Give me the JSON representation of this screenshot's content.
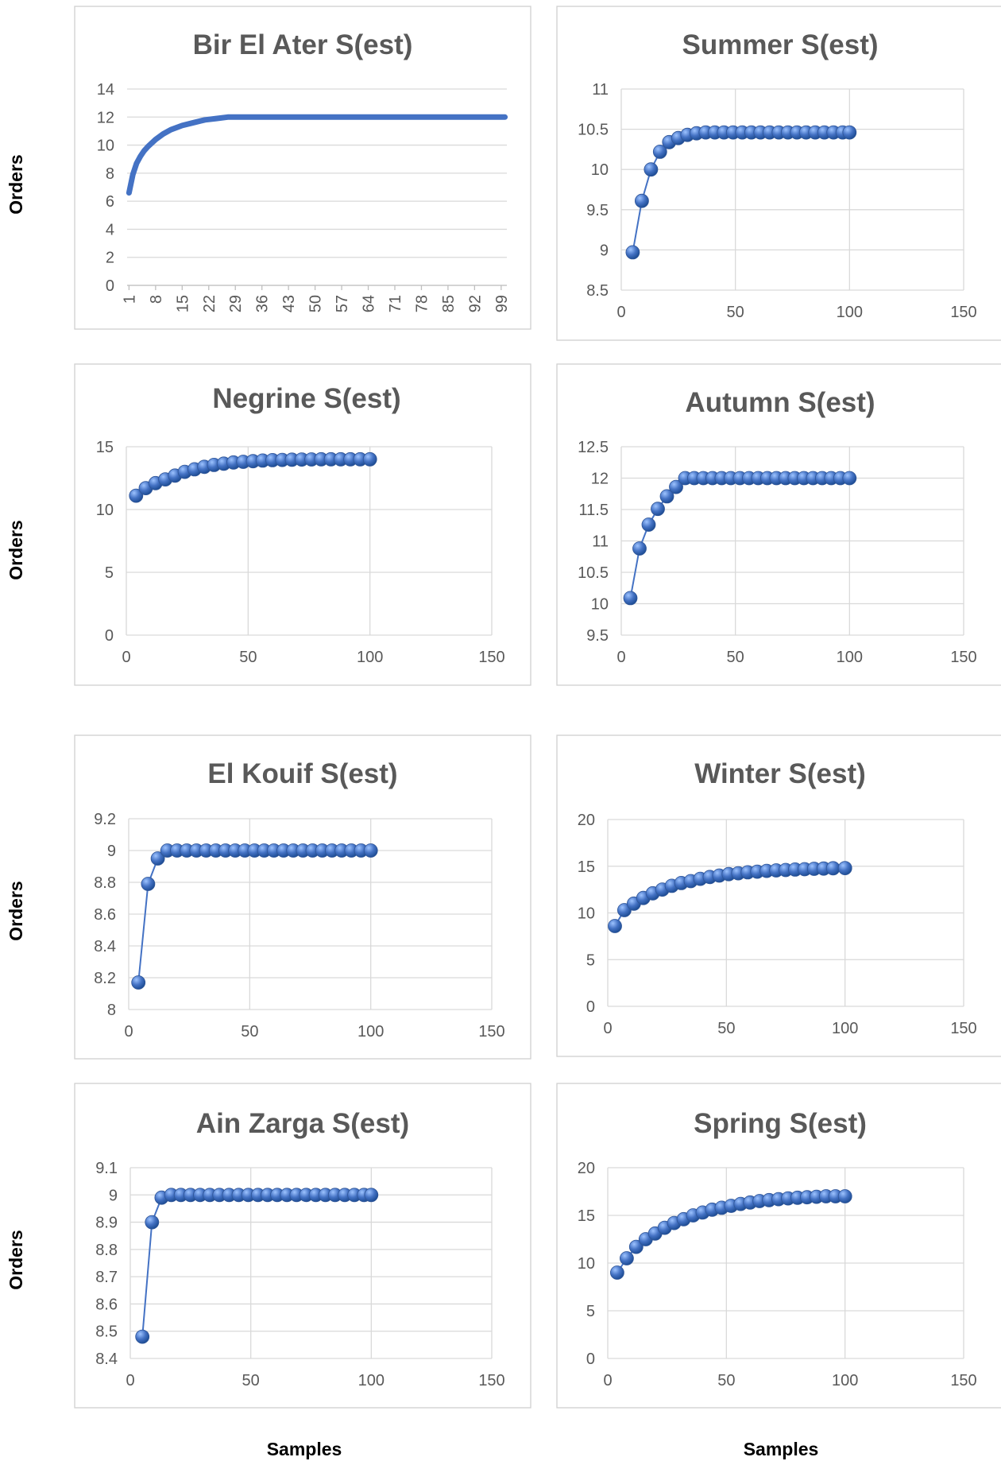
{
  "figure": {
    "ylabel": "Orders",
    "xlabel": "Samples"
  },
  "colors": {
    "series": "#4472c4",
    "marker_light": "#9dc3ff",
    "marker_dark": "#1f4e96",
    "grid": "#d9d9d9",
    "text": "#595959"
  },
  "chart_data": [
    {
      "type": "line",
      "title": "Bir El Ater S(est)",
      "xlabel": "",
      "ylabel": "",
      "x_axis": "category",
      "tick_labels": [
        "1",
        "8",
        "15",
        "22",
        "29",
        "36",
        "43",
        "50",
        "57",
        "64",
        "71",
        "78",
        "85",
        "92",
        "99"
      ],
      "ylim": [
        0,
        14
      ],
      "yticks": [
        0,
        2,
        4,
        6,
        8,
        10,
        12,
        14
      ],
      "grid": true,
      "markers": false,
      "x": [
        1,
        2,
        3,
        4,
        5,
        6,
        8,
        10,
        12,
        15,
        18,
        21,
        24,
        27,
        100
      ],
      "y": [
        6.6,
        7.9,
        8.7,
        9.2,
        9.6,
        9.9,
        10.4,
        10.8,
        11.1,
        11.4,
        11.6,
        11.8,
        11.9,
        12.0,
        12.0
      ]
    },
    {
      "type": "scatter",
      "title": "Summer S(est)",
      "xlabel": "",
      "ylabel": "",
      "xlim": [
        0,
        150
      ],
      "xticks": [
        0,
        50,
        100,
        150
      ],
      "ylim": [
        8.5,
        11
      ],
      "yticks": [
        8.5,
        9,
        9.5,
        10,
        10.5,
        11
      ],
      "grid": true,
      "markers": true,
      "x": [
        5,
        9,
        13,
        17,
        21,
        25,
        29,
        33,
        37,
        41,
        45,
        49,
        53,
        57,
        61,
        65,
        69,
        73,
        77,
        81,
        85,
        89,
        93,
        97,
        100
      ],
      "y": [
        8.97,
        9.61,
        10.0,
        10.22,
        10.34,
        10.39,
        10.43,
        10.45,
        10.46,
        10.46,
        10.46,
        10.46,
        10.46,
        10.46,
        10.46,
        10.46,
        10.46,
        10.46,
        10.46,
        10.46,
        10.46,
        10.46,
        10.46,
        10.46,
        10.46
      ]
    },
    {
      "type": "scatter",
      "title": "Negrine S(est)",
      "xlabel": "",
      "ylabel": "",
      "xlim": [
        0,
        150
      ],
      "xticks": [
        0,
        50,
        100,
        150
      ],
      "ylim": [
        0,
        15
      ],
      "yticks": [
        0,
        5,
        10,
        15
      ],
      "grid": true,
      "markers": true,
      "x": [
        4,
        8,
        12,
        16,
        20,
        24,
        28,
        32,
        36,
        40,
        44,
        48,
        52,
        56,
        60,
        64,
        68,
        72,
        76,
        80,
        84,
        88,
        92,
        96,
        100
      ],
      "y": [
        11.1,
        11.7,
        12.1,
        12.4,
        12.7,
        13.0,
        13.2,
        13.4,
        13.55,
        13.65,
        13.75,
        13.8,
        13.85,
        13.9,
        13.93,
        13.95,
        13.97,
        13.98,
        13.99,
        14.0,
        14.0,
        14.0,
        14.0,
        14.0,
        14.0
      ]
    },
    {
      "type": "scatter",
      "title": "Autumn S(est)",
      "xlabel": "",
      "ylabel": "",
      "xlim": [
        0,
        150
      ],
      "xticks": [
        0,
        50,
        100,
        150
      ],
      "ylim": [
        9.5,
        12.5
      ],
      "yticks": [
        9.5,
        10,
        10.5,
        11,
        11.5,
        12,
        12.5
      ],
      "grid": true,
      "markers": true,
      "x": [
        4,
        8,
        12,
        16,
        20,
        24,
        28,
        32,
        36,
        40,
        44,
        48,
        52,
        56,
        60,
        64,
        68,
        72,
        76,
        80,
        84,
        88,
        92,
        96,
        100
      ],
      "y": [
        10.09,
        10.88,
        11.26,
        11.51,
        11.71,
        11.86,
        12.0,
        12.0,
        12.0,
        12.0,
        12.0,
        12.0,
        12.0,
        12.0,
        12.0,
        12.0,
        12.0,
        12.0,
        12.0,
        12.0,
        12.0,
        12.0,
        12.0,
        12.0,
        12.0
      ]
    },
    {
      "type": "scatter",
      "title": "El Kouif S(est)",
      "xlabel": "",
      "ylabel": "",
      "xlim": [
        0,
        150
      ],
      "xticks": [
        0,
        50,
        100,
        150
      ],
      "ylim": [
        8,
        9.2
      ],
      "yticks": [
        8,
        8.2,
        8.4,
        8.6,
        8.8,
        9,
        9.2
      ],
      "grid": true,
      "markers": true,
      "x": [
        4,
        8,
        12,
        16,
        20,
        24,
        28,
        32,
        36,
        40,
        44,
        48,
        52,
        56,
        60,
        64,
        68,
        72,
        76,
        80,
        84,
        88,
        92,
        96,
        100
      ],
      "y": [
        8.17,
        8.79,
        8.95,
        9.0,
        9.0,
        9.0,
        9.0,
        9.0,
        9.0,
        9.0,
        9.0,
        9.0,
        9.0,
        9.0,
        9.0,
        9.0,
        9.0,
        9.0,
        9.0,
        9.0,
        9.0,
        9.0,
        9.0,
        9.0,
        9.0
      ]
    },
    {
      "type": "scatter",
      "title": "Winter S(est)",
      "xlabel": "",
      "ylabel": "",
      "xlim": [
        0,
        150
      ],
      "xticks": [
        0,
        50,
        100,
        150
      ],
      "ylim": [
        0,
        20
      ],
      "yticks": [
        0,
        5,
        10,
        15,
        20
      ],
      "grid": true,
      "markers": true,
      "x": [
        3,
        7,
        11,
        15,
        19,
        23,
        27,
        31,
        35,
        39,
        43,
        47,
        51,
        55,
        59,
        63,
        67,
        71,
        75,
        79,
        83,
        87,
        91,
        95,
        100
      ],
      "y": [
        8.6,
        10.3,
        11.0,
        11.6,
        12.1,
        12.5,
        12.9,
        13.2,
        13.4,
        13.65,
        13.85,
        14.0,
        14.15,
        14.25,
        14.35,
        14.42,
        14.5,
        14.55,
        14.6,
        14.65,
        14.68,
        14.72,
        14.75,
        14.78,
        14.8
      ]
    },
    {
      "type": "scatter",
      "title": "Ain Zarga S(est)",
      "xlabel": "",
      "ylabel": "",
      "xlim": [
        0,
        150
      ],
      "xticks": [
        0,
        50,
        100,
        150
      ],
      "ylim": [
        8.4,
        9.1
      ],
      "yticks": [
        8.4,
        8.5,
        8.6,
        8.7,
        8.8,
        8.9,
        9,
        9.1
      ],
      "grid": true,
      "markers": true,
      "x": [
        5,
        9,
        13,
        17,
        21,
        25,
        29,
        33,
        37,
        41,
        45,
        49,
        53,
        57,
        61,
        65,
        69,
        73,
        77,
        81,
        85,
        89,
        93,
        97,
        100
      ],
      "y": [
        8.48,
        8.9,
        8.99,
        9.0,
        9.0,
        9.0,
        9.0,
        9.0,
        9.0,
        9.0,
        9.0,
        9.0,
        9.0,
        9.0,
        9.0,
        9.0,
        9.0,
        9.0,
        9.0,
        9.0,
        9.0,
        9.0,
        9.0,
        9.0,
        9.0
      ]
    },
    {
      "type": "scatter",
      "title": "Spring S(est)",
      "xlabel": "",
      "ylabel": "",
      "xlim": [
        0,
        150
      ],
      "xticks": [
        0,
        50,
        100,
        150
      ],
      "ylim": [
        0,
        20
      ],
      "yticks": [
        0,
        5,
        10,
        15,
        20
      ],
      "grid": true,
      "markers": true,
      "x": [
        4,
        8,
        12,
        16,
        20,
        24,
        28,
        32,
        36,
        40,
        44,
        48,
        52,
        56,
        60,
        64,
        68,
        72,
        76,
        80,
        84,
        88,
        92,
        96,
        100
      ],
      "y": [
        9.0,
        10.5,
        11.7,
        12.5,
        13.1,
        13.7,
        14.2,
        14.6,
        15.0,
        15.3,
        15.6,
        15.8,
        16.0,
        16.2,
        16.35,
        16.5,
        16.6,
        16.7,
        16.78,
        16.85,
        16.9,
        16.95,
        17.0,
        17.0,
        17.0
      ]
    }
  ]
}
